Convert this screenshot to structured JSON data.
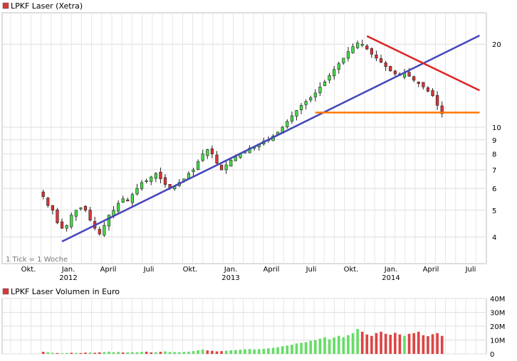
{
  "chart_data": [
    {
      "type": "candlestick",
      "title": "LPKF Laser (Xetra)",
      "scale": "log",
      "note": "1 Tick = 1 Woche",
      "legend_color": "#d33b3b",
      "y_ticks": [
        4,
        5,
        6,
        7,
        8,
        9,
        10,
        20
      ],
      "y_range": [
        3.2,
        26
      ],
      "x_month_labels": [
        "Okt.",
        "Jan.",
        "April",
        "Juli",
        "Okt.",
        "Jan.",
        "April",
        "Juli",
        "Okt.",
        "Jan.",
        "April",
        "Juli"
      ],
      "x_year_labels": [
        "2012",
        "2013",
        "2014"
      ],
      "close_path": [
        5.6,
        5.2,
        5.0,
        4.5,
        4.3,
        4.4,
        4.8,
        5.0,
        5.1,
        5.0,
        4.6,
        4.3,
        4.1,
        4.4,
        4.8,
        5.0,
        5.3,
        5.5,
        5.4,
        5.7,
        6.0,
        6.3,
        6.4,
        6.6,
        6.8,
        6.5,
        6.2,
        6.0,
        6.1,
        6.3,
        6.5,
        6.8,
        7.0,
        7.5,
        8.0,
        8.3,
        8.0,
        7.4,
        7.0,
        7.3,
        7.6,
        7.8,
        8.0,
        8.2,
        8.4,
        8.5,
        8.7,
        8.9,
        9.0,
        9.3,
        9.6,
        10.0,
        10.5,
        11.0,
        11.5,
        12.0,
        12.4,
        12.8,
        13.3,
        14.0,
        14.6,
        15.4,
        16.2,
        17.0,
        17.8,
        18.8,
        19.6,
        20.2,
        20.0,
        19.2,
        18.4,
        17.8,
        17.2,
        16.6,
        16.0,
        15.6,
        15.4,
        15.8,
        15.3,
        14.8,
        14.4,
        14.0,
        13.5,
        13.0,
        12.0,
        11.2
      ],
      "trendlines": [
        {
          "name": "support",
          "color": "#4444bb",
          "from": {
            "week": 12,
            "value": 3.85
          },
          "to": {
            "week": 101,
            "value": 21.5
          }
        },
        {
          "name": "resistance",
          "color": "#dd2222",
          "from": {
            "week": 77,
            "value": 21.4
          },
          "to": {
            "week": 101,
            "value": 13.6
          }
        },
        {
          "name": "horizontal",
          "color": "#ff7700",
          "from": {
            "week": 66,
            "value": 11.3
          },
          "to": {
            "week": 101,
            "value": 11.3
          }
        }
      ]
    },
    {
      "type": "bar",
      "title": "LPKF Laser Volumen in Euro",
      "legend_color": "#d33b3b",
      "y_ticks": [
        "0",
        "10M",
        "20M",
        "30M",
        "40M"
      ],
      "y_range": [
        0,
        40
      ],
      "unit": "M EUR",
      "values": [
        1.5,
        1.2,
        0.8,
        0.6,
        0.5,
        0.6,
        0.8,
        0.7,
        0.6,
        0.9,
        1.0,
        0.8,
        1.1,
        1.3,
        1.6,
        1.2,
        1.4,
        1.0,
        1.1,
        1.3,
        1.2,
        1.5,
        1.6,
        1.1,
        1.2,
        1.5,
        1.8,
        1.4,
        1.3,
        1.2,
        1.4,
        1.6,
        2.0,
        2.6,
        3.1,
        2.5,
        2.2,
        1.8,
        2.0,
        2.3,
        2.6,
        2.8,
        3.0,
        3.3,
        3.5,
        3.2,
        3.4,
        3.6,
        4.0,
        4.4,
        4.8,
        5.5,
        6.0,
        6.6,
        7.5,
        8.0,
        8.5,
        9.5,
        10.0,
        11.0,
        12.0,
        10.5,
        11.8,
        13.0,
        12.0,
        13.5,
        15.0,
        18.0,
        16.0,
        14.0,
        13.0,
        15.0,
        16.0,
        14.5,
        13.8,
        15.2,
        14.0,
        13.0,
        14.5,
        15.0,
        16.0,
        13.5,
        12.8,
        14.2,
        15.0,
        13.0
      ],
      "volume_colors": [
        "r",
        "g",
        "g",
        "r",
        "g",
        "g",
        "r",
        "g",
        "r",
        "r",
        "g",
        "r",
        "r",
        "g",
        "g",
        "g",
        "g",
        "r",
        "g",
        "g",
        "g",
        "g",
        "r",
        "r",
        "g",
        "r",
        "g",
        "g",
        "g",
        "g",
        "g",
        "g",
        "g",
        "g",
        "g",
        "r",
        "r",
        "r",
        "r",
        "g",
        "g",
        "g",
        "g",
        "g",
        "g",
        "g",
        "g",
        "g",
        "g",
        "g",
        "g",
        "g",
        "g",
        "g",
        "g",
        "g",
        "g",
        "g",
        "g",
        "g",
        "g",
        "g",
        "g",
        "g",
        "g",
        "g",
        "g",
        "g",
        "r",
        "r",
        "r",
        "r",
        "r",
        "r",
        "r",
        "r",
        "r",
        "g",
        "r",
        "r",
        "r",
        "r",
        "r",
        "r",
        "r",
        "r"
      ]
    }
  ]
}
